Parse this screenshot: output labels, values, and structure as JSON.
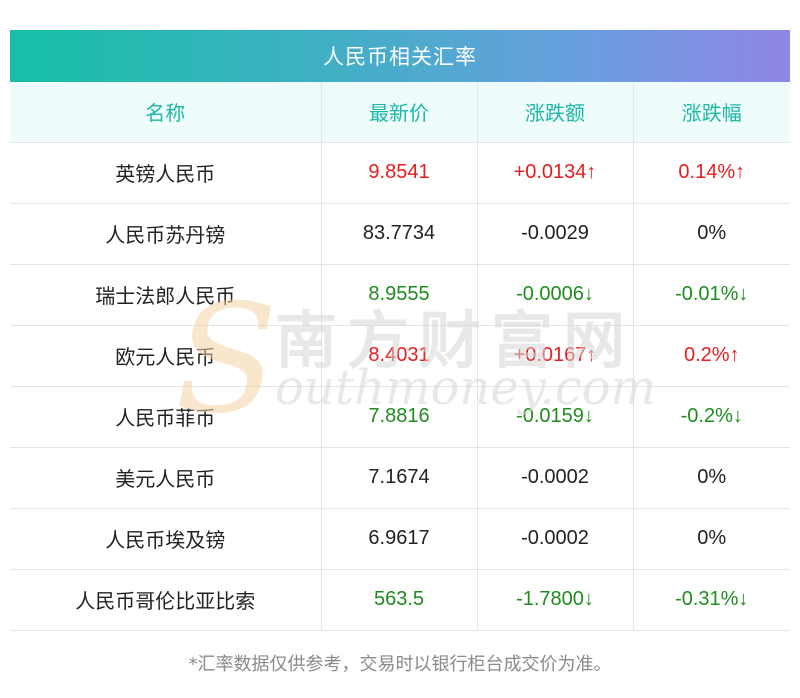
{
  "title": "人民币相关汇率",
  "columns": [
    "名称",
    "最新价",
    "涨跌额",
    "涨跌幅"
  ],
  "rows": [
    {
      "name": "英镑人民币",
      "price": "9.8541",
      "change": "+0.0134↑",
      "pct": "0.14%↑",
      "trend": "up"
    },
    {
      "name": "人民币苏丹镑",
      "price": "83.7734",
      "change": "-0.0029",
      "pct": "0%",
      "trend": "flat"
    },
    {
      "name": "瑞士法郎人民币",
      "price": "8.9555",
      "change": "-0.0006↓",
      "pct": "-0.01%↓",
      "trend": "down"
    },
    {
      "name": "欧元人民币",
      "price": "8.4031",
      "change": "+0.0167↑",
      "pct": "0.2%↑",
      "trend": "up"
    },
    {
      "name": "人民币菲币",
      "price": "7.8816",
      "change": "-0.0159↓",
      "pct": "-0.2%↓",
      "trend": "down"
    },
    {
      "name": "美元人民币",
      "price": "7.1674",
      "change": "-0.0002",
      "pct": "0%",
      "trend": "flat"
    },
    {
      "name": "人民币埃及镑",
      "price": "6.9617",
      "change": "-0.0002",
      "pct": "0%",
      "trend": "flat"
    },
    {
      "name": "人民币哥伦比亚比索",
      "price": "563.5",
      "change": "-1.7800↓",
      "pct": "-0.31%↓",
      "trend": "down"
    }
  ],
  "footer_note": "*汇率数据仅供参考，交易时以银行柜台成交价为准。",
  "watermark": {
    "letter": "S",
    "cn": "南方财富网",
    "en": "outhmoney.com"
  },
  "colors": {
    "header_gradient_start": "#16bfa6",
    "header_gradient_end": "#8f86e6",
    "column_header_text": "#1db8a8",
    "up": "#e81c1c",
    "down": "#1f8c1f",
    "flat": "#222222"
  }
}
